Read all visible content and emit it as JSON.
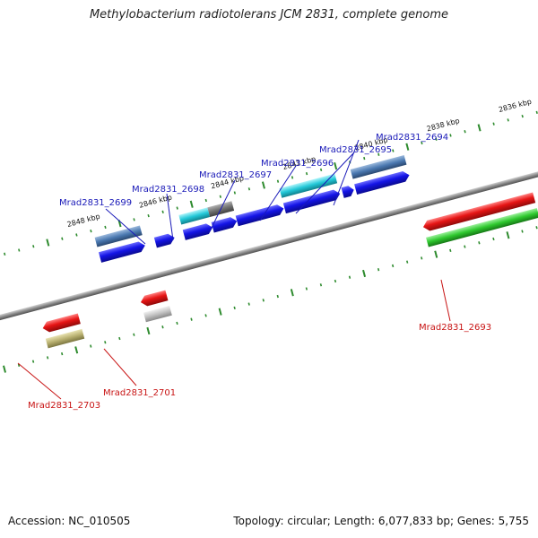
{
  "title": "Methylobacterium radiotolerans JCM 2831, complete genome",
  "footer": {
    "accession": "Accession: NC_010505",
    "summary": "Topology: circular; Length: 6,077,833 bp; Genes: 5,755"
  },
  "colors": {
    "backbone": "#8a8a8a",
    "tick": "#2e8b2e",
    "forward_label": "#1a1ab8",
    "reverse_label": "#c81414",
    "cds_forward": "#1414e6",
    "cds_reverse": "#e61414",
    "gene_steel": "#4a78b0",
    "gene_cyan": "#22c8d8",
    "gene_gray": "#707070",
    "gene_green": "#2ec82e",
    "gene_silver": "#c0c0c0",
    "gene_olive": "#b8b070"
  },
  "ticks": {
    "labels": [
      "2836 kbp",
      "2838 kbp",
      "2840 kbp",
      "2842 kbp",
      "2844 kbp",
      "2846 kbp",
      "2848 kbp"
    ]
  },
  "gene_labels": {
    "forward": [
      "Mrad2831_2694",
      "Mrad2831_2695",
      "Mrad2831_2696",
      "Mrad2831_2697",
      "Mrad2831_2698",
      "Mrad2831_2699"
    ],
    "reverse": [
      "Mrad2831_2693",
      "Mrad2831_2701",
      "Mrad2831_2703"
    ]
  }
}
